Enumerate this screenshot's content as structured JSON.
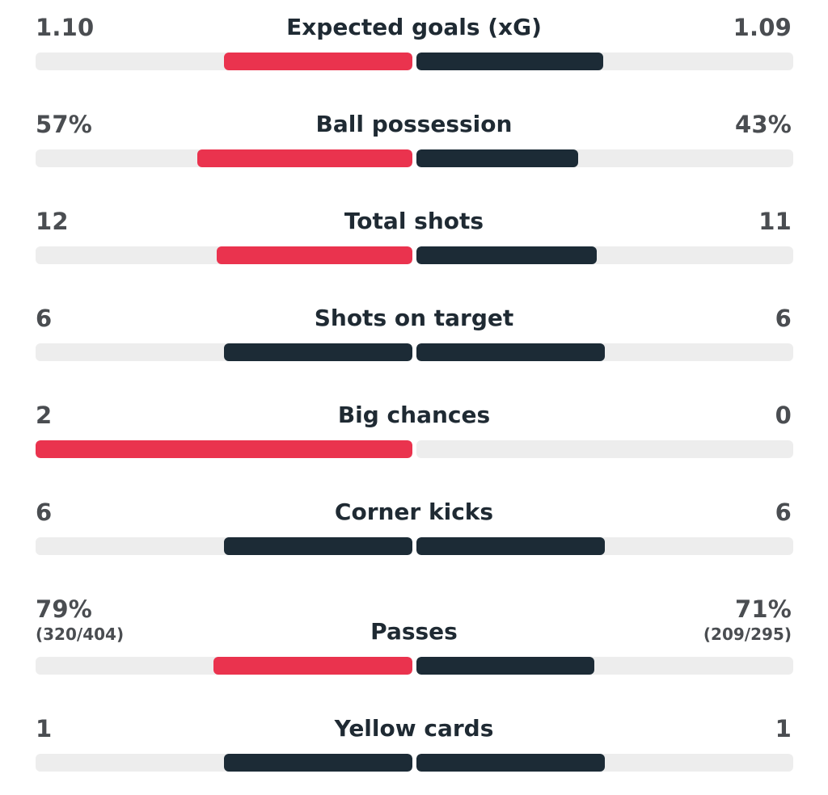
{
  "colors": {
    "home_accent": "#ea334e",
    "away_accent": "#1c2b36",
    "track": "#ededed",
    "text_value": "#4a4d51",
    "text_label": "#1f2a33"
  },
  "stats": [
    {
      "label": "Expected goals (xG)",
      "home": "1.10",
      "away": "1.09",
      "home_sub": "",
      "away_sub": "",
      "home_fill": 0.5,
      "away_fill": 0.495,
      "home_color": "#ea334e",
      "away_color": "#1c2b36"
    },
    {
      "label": "Ball possession",
      "home": "57%",
      "away": "43%",
      "home_sub": "",
      "away_sub": "",
      "home_fill": 0.57,
      "away_fill": 0.43,
      "home_color": "#ea334e",
      "away_color": "#1c2b36"
    },
    {
      "label": "Total shots",
      "home": "12",
      "away": "11",
      "home_sub": "",
      "away_sub": "",
      "home_fill": 0.52,
      "away_fill": 0.478,
      "home_color": "#ea334e",
      "away_color": "#1c2b36"
    },
    {
      "label": "Shots on target",
      "home": "6",
      "away": "6",
      "home_sub": "",
      "away_sub": "",
      "home_fill": 0.5,
      "away_fill": 0.5,
      "home_color": "#1c2b36",
      "away_color": "#1c2b36"
    },
    {
      "label": "Big chances",
      "home": "2",
      "away": "0",
      "home_sub": "",
      "away_sub": "",
      "home_fill": 1.0,
      "away_fill": 0.0,
      "home_color": "#ea334e",
      "away_color": "#1c2b36"
    },
    {
      "label": "Corner kicks",
      "home": "6",
      "away": "6",
      "home_sub": "",
      "away_sub": "",
      "home_fill": 0.5,
      "away_fill": 0.5,
      "home_color": "#1c2b36",
      "away_color": "#1c2b36"
    },
    {
      "label": "Passes",
      "home": "79%",
      "away": "71%",
      "home_sub": "(320/404)",
      "away_sub": "(209/295)",
      "home_fill": 0.527,
      "away_fill": 0.473,
      "home_color": "#ea334e",
      "away_color": "#1c2b36"
    },
    {
      "label": "Yellow cards",
      "home": "1",
      "away": "1",
      "home_sub": "",
      "away_sub": "",
      "home_fill": 0.5,
      "away_fill": 0.5,
      "home_color": "#1c2b36",
      "away_color": "#1c2b36"
    }
  ]
}
